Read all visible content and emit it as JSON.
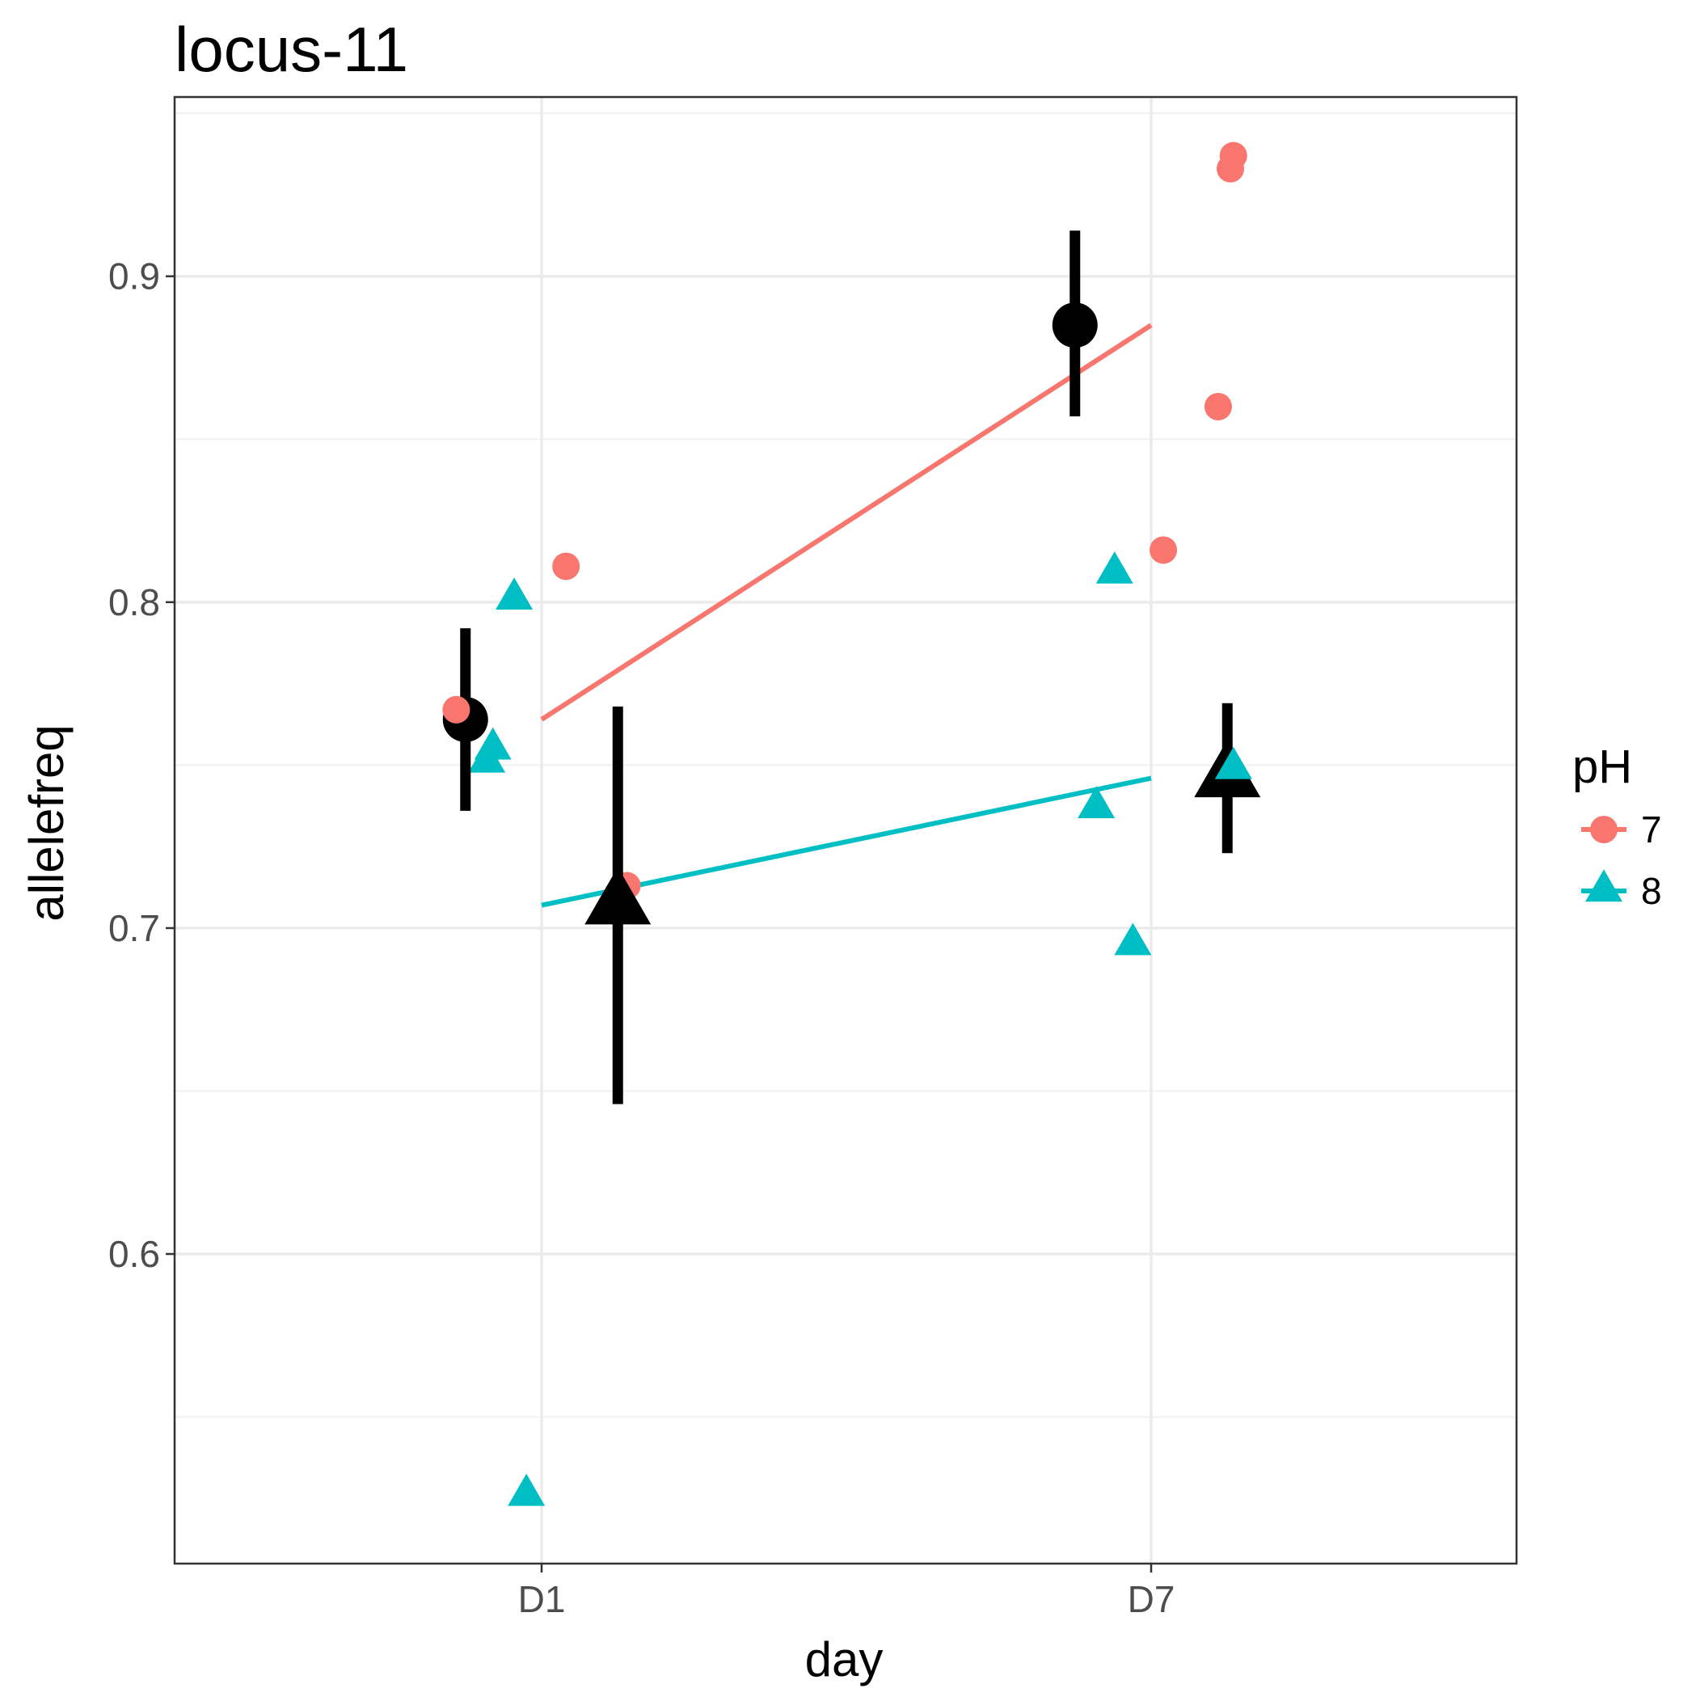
{
  "chart_data": {
    "type": "scatter",
    "title": "locus-11",
    "xlabel": "day",
    "ylabel": "allelefreq",
    "categories": [
      "D1",
      "D7"
    ],
    "ylim": [
      0.505,
      0.955
    ],
    "yticks": [
      0.6,
      0.7,
      0.8,
      0.9
    ],
    "ytick_labels": [
      "0.6",
      "0.7",
      "0.8",
      "0.9"
    ],
    "grid": true,
    "legend": {
      "title": "pH",
      "position": "right",
      "entries": [
        {
          "label": "7",
          "color": "#f8766d",
          "shape": "circle"
        },
        {
          "label": "8",
          "color": "#00bfc4",
          "shape": "triangle"
        }
      ]
    },
    "series": [
      {
        "name": "7",
        "color": "#f8766d",
        "shape": "circle",
        "points": [
          {
            "x": "D1",
            "jitter": -0.14,
            "y": 0.767
          },
          {
            "x": "D1",
            "jitter": 0.04,
            "y": 0.811
          },
          {
            "x": "D1",
            "jitter": 0.14,
            "y": 0.713
          },
          {
            "x": "D7",
            "jitter": 0.02,
            "y": 0.816
          },
          {
            "x": "D7",
            "jitter": 0.11,
            "y": 0.86
          },
          {
            "x": "D7",
            "jitter": 0.13,
            "y": 0.933
          },
          {
            "x": "D7",
            "jitter": 0.135,
            "y": 0.937
          }
        ],
        "trend": {
          "D1": 0.764,
          "D7": 0.885
        },
        "summary": [
          {
            "x": "D1",
            "offset": -0.125,
            "mean": 0.764,
            "lo": 0.736,
            "hi": 0.792
          },
          {
            "x": "D7",
            "offset": -0.125,
            "mean": 0.885,
            "lo": 0.857,
            "hi": 0.914
          }
        ]
      },
      {
        "name": "8",
        "color": "#00bfc4",
        "shape": "triangle",
        "points": [
          {
            "x": "D1",
            "jitter": -0.09,
            "y": 0.751
          },
          {
            "x": "D1",
            "jitter": -0.08,
            "y": 0.755
          },
          {
            "x": "D1",
            "jitter": -0.045,
            "y": 0.801
          },
          {
            "x": "D1",
            "jitter": -0.025,
            "y": 0.526
          },
          {
            "x": "D7",
            "jitter": -0.09,
            "y": 0.737
          },
          {
            "x": "D7",
            "jitter": -0.06,
            "y": 0.809
          },
          {
            "x": "D7",
            "jitter": -0.03,
            "y": 0.695
          },
          {
            "x": "D7",
            "jitter": 0.135,
            "y": 0.749
          }
        ],
        "trend": {
          "D1": 0.707,
          "D7": 0.746
        },
        "summary": [
          {
            "x": "D1",
            "offset": 0.125,
            "mean": 0.707,
            "lo": 0.646,
            "hi": 0.768
          },
          {
            "x": "D7",
            "offset": 0.125,
            "mean": 0.746,
            "lo": 0.723,
            "hi": 0.769
          }
        ]
      }
    ]
  }
}
